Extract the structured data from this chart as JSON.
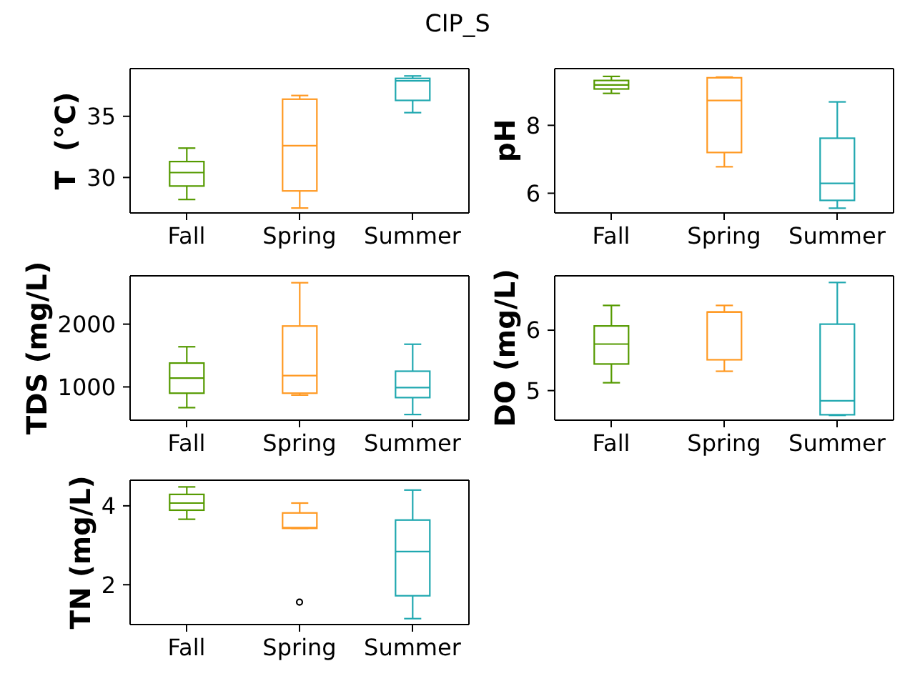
{
  "chart_data": [
    {
      "type": "box",
      "title": "CIP_S",
      "categories": [
        "Fall",
        "Spring",
        "Summer"
      ],
      "colors": [
        "#559a00",
        "#ff9922",
        "#20a8b0"
      ],
      "ylabel": "T  (°C)",
      "ylim": [
        27.1,
        38.9
      ],
      "yticks": [
        30,
        35
      ],
      "boxes": [
        {
          "low": 28.2,
          "q1": 29.3,
          "median": 30.4,
          "q3": 31.3,
          "high": 32.4
        },
        {
          "low": 27.5,
          "q1": 28.9,
          "median": 32.6,
          "q3": 36.4,
          "high": 36.7
        },
        {
          "low": 35.3,
          "q1": 36.3,
          "median": 37.9,
          "q3": 38.1,
          "high": 38.3
        }
      ]
    },
    {
      "type": "box",
      "categories": [
        "Fall",
        "Spring",
        "Summer"
      ],
      "colors": [
        "#559a00",
        "#ff9922",
        "#20a8b0"
      ],
      "ylabel": "pH",
      "ylim": [
        5.42,
        9.67
      ],
      "yticks": [
        6,
        8
      ],
      "boxes": [
        {
          "low": 8.94,
          "q1": 9.07,
          "median": 9.19,
          "q3": 9.32,
          "high": 9.44
        },
        {
          "low": 6.78,
          "q1": 7.2,
          "median": 8.73,
          "q3": 9.4,
          "high": 9.42
        },
        {
          "low": 5.56,
          "q1": 5.79,
          "median": 6.29,
          "q3": 7.62,
          "high": 8.69
        }
      ]
    },
    {
      "type": "box",
      "categories": [
        "Fall",
        "Spring",
        "Summer"
      ],
      "colors": [
        "#559a00",
        "#ff9922",
        "#20a8b0"
      ],
      "ylabel": "TDS (mg/L)",
      "ylim": [
        470,
        2770
      ],
      "yticks": [
        1000,
        2000
      ],
      "boxes": [
        {
          "low": 670,
          "q1": 900,
          "median": 1140,
          "q3": 1380,
          "high": 1640
        },
        {
          "low": 870,
          "q1": 900,
          "median": 1180,
          "q3": 1970,
          "high": 2660
        },
        {
          "low": 560,
          "q1": 830,
          "median": 990,
          "q3": 1250,
          "high": 1680
        }
      ]
    },
    {
      "type": "box",
      "categories": [
        "Fall",
        "Spring",
        "Summer"
      ],
      "colors": [
        "#559a00",
        "#ff9922",
        "#20a8b0"
      ],
      "ylabel": "DO (mg/L)",
      "ylim": [
        4.51,
        6.9
      ],
      "yticks": [
        5,
        6
      ],
      "boxes": [
        {
          "low": 5.13,
          "q1": 5.44,
          "median": 5.77,
          "q3": 6.07,
          "high": 6.41
        },
        {
          "low": 5.32,
          "q1": 5.51,
          "median": 6.3,
          "q3": 6.3,
          "high": 6.41
        },
        {
          "low": 4.59,
          "q1": 4.6,
          "median": 4.83,
          "q3": 6.1,
          "high": 6.79
        }
      ]
    },
    {
      "type": "box",
      "categories": [
        "Fall",
        "Spring",
        "Summer"
      ],
      "colors": [
        "#559a00",
        "#ff9922",
        "#20a8b0"
      ],
      "ylabel": "TN (mg/L)",
      "ylim": [
        0.99,
        4.65
      ],
      "yticks": [
        2,
        4
      ],
      "boxes": [
        {
          "low": 3.66,
          "q1": 3.89,
          "median": 4.07,
          "q3": 4.29,
          "high": 4.48
        },
        {
          "low": 3.43,
          "q1": 3.43,
          "median": 3.45,
          "q3": 3.82,
          "high": 4.07,
          "outliers": [
            1.56
          ]
        },
        {
          "low": 1.14,
          "q1": 1.72,
          "median": 2.84,
          "q3": 3.64,
          "high": 4.4
        }
      ]
    }
  ]
}
